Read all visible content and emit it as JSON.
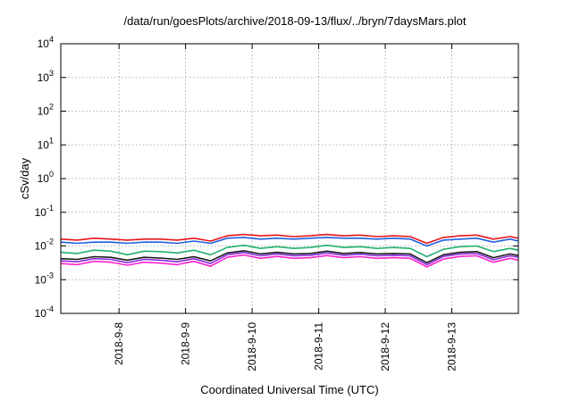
{
  "chart_data": {
    "type": "line",
    "title": "/data/run/goesPlots/archive/2018-09-13/flux/../bryn/7daysMars.plot",
    "xlabel": "Coordinated Universal Time (UTC)",
    "ylabel": "cSv/day",
    "yscale": "log",
    "ylim": [
      0.0001,
      10000
    ],
    "ytick_labels": [
      {
        "base": "10",
        "exp": "-4"
      },
      {
        "base": "10",
        "exp": "-3"
      },
      {
        "base": "10",
        "exp": "-2"
      },
      {
        "base": "10",
        "exp": "-1"
      },
      {
        "base": "10",
        "exp": "0"
      },
      {
        "base": "10",
        "exp": "1"
      },
      {
        "base": "10",
        "exp": "2"
      },
      {
        "base": "10",
        "exp": "3"
      },
      {
        "base": "10",
        "exp": "4"
      }
    ],
    "xlim": [
      "2018-09-07T03:00",
      "2018-09-14T00:00"
    ],
    "xtick_labels": [
      "2018-9-8",
      "2018-9-9",
      "2018-9-10",
      "2018-9-11",
      "2018-9-12",
      "2018-9-13"
    ],
    "grid": true,
    "x": [
      "2018-09-07T03:00",
      "2018-09-07T09:00",
      "2018-09-07T15:00",
      "2018-09-07T21:00",
      "2018-09-08T03:00",
      "2018-09-08T09:00",
      "2018-09-08T15:00",
      "2018-09-08T21:00",
      "2018-09-09T03:00",
      "2018-09-09T09:00",
      "2018-09-09T15:00",
      "2018-09-09T21:00",
      "2018-09-10T03:00",
      "2018-09-10T09:00",
      "2018-09-10T15:00",
      "2018-09-10T21:00",
      "2018-09-11T03:00",
      "2018-09-11T09:00",
      "2018-09-11T15:00",
      "2018-09-11T21:00",
      "2018-09-12T03:00",
      "2018-09-12T09:00",
      "2018-09-12T15:00",
      "2018-09-12T21:00",
      "2018-09-13T03:00",
      "2018-09-13T09:00",
      "2018-09-13T15:00",
      "2018-09-13T21:00",
      "2018-09-14T00:00"
    ],
    "series": [
      {
        "color": "#e8141c",
        "values": [
          0.016,
          0.015,
          0.017,
          0.016,
          0.015,
          0.016,
          0.016,
          0.015,
          0.017,
          0.014,
          0.02,
          0.022,
          0.02,
          0.021,
          0.019,
          0.02,
          0.022,
          0.02,
          0.021,
          0.019,
          0.02,
          0.019,
          0.012,
          0.018,
          0.02,
          0.021,
          0.016,
          0.019,
          0.017
        ]
      },
      {
        "color": "#1f5fe0",
        "values": [
          0.013,
          0.012,
          0.013,
          0.013,
          0.012,
          0.013,
          0.013,
          0.012,
          0.014,
          0.012,
          0.017,
          0.018,
          0.016,
          0.017,
          0.016,
          0.017,
          0.018,
          0.017,
          0.017,
          0.016,
          0.017,
          0.016,
          0.01,
          0.015,
          0.016,
          0.017,
          0.013,
          0.016,
          0.014
        ]
      },
      {
        "color": "#20b070",
        "values": [
          0.0065,
          0.006,
          0.0075,
          0.007,
          0.0055,
          0.007,
          0.0068,
          0.0062,
          0.0075,
          0.0055,
          0.009,
          0.0105,
          0.0085,
          0.0095,
          0.0085,
          0.009,
          0.0105,
          0.009,
          0.0095,
          0.0085,
          0.009,
          0.0085,
          0.0048,
          0.008,
          0.0095,
          0.01,
          0.0068,
          0.0085,
          0.0075
        ]
      },
      {
        "color": "#1a1a1a",
        "values": [
          0.0042,
          0.004,
          0.0048,
          0.0046,
          0.0038,
          0.0046,
          0.0044,
          0.004,
          0.0048,
          0.0036,
          0.0062,
          0.0072,
          0.0058,
          0.0065,
          0.0058,
          0.006,
          0.007,
          0.006,
          0.0064,
          0.0058,
          0.006,
          0.0058,
          0.0032,
          0.0055,
          0.0065,
          0.0068,
          0.0045,
          0.0058,
          0.0052
        ]
      },
      {
        "color": "#8a2be2",
        "values": [
          0.0036,
          0.0034,
          0.0042,
          0.004,
          0.0032,
          0.004,
          0.0038,
          0.0034,
          0.0042,
          0.003,
          0.0055,
          0.0064,
          0.0051,
          0.0058,
          0.0051,
          0.0053,
          0.0062,
          0.0053,
          0.0057,
          0.0051,
          0.0053,
          0.0051,
          0.0028,
          0.0049,
          0.0058,
          0.006,
          0.0039,
          0.0051,
          0.0046
        ]
      },
      {
        "color": "#ff22cc",
        "values": [
          0.003,
          0.0028,
          0.0035,
          0.0033,
          0.0027,
          0.0033,
          0.0031,
          0.0028,
          0.0035,
          0.0025,
          0.0046,
          0.0054,
          0.0043,
          0.0049,
          0.0043,
          0.0045,
          0.0052,
          0.0045,
          0.0048,
          0.0043,
          0.0045,
          0.0043,
          0.0024,
          0.0041,
          0.0049,
          0.0051,
          0.0033,
          0.0043,
          0.0038
        ]
      }
    ]
  }
}
